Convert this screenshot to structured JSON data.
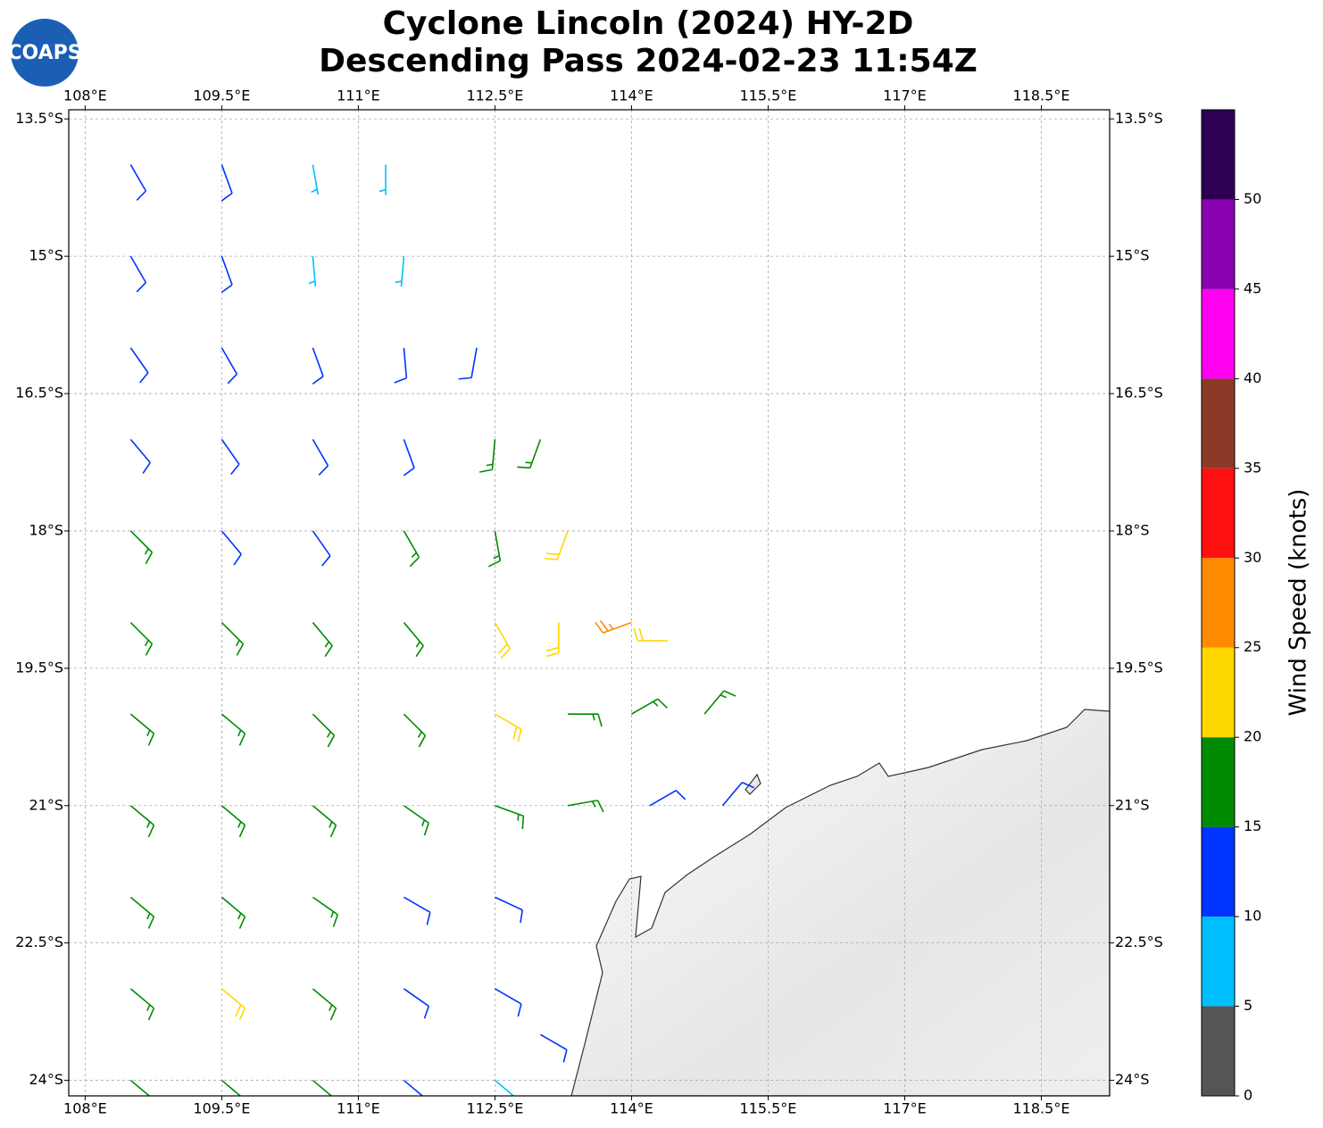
{
  "map": {
    "logo": "COAPS",
    "title": [
      "Cyclone Lincoln (2024) HY-2D",
      "Descending Pass 2024-02-23 11:54Z"
    ],
    "xlim": [
      107.82,
      119.25
    ],
    "ylim": [
      13.4,
      24.17
    ],
    "xticks": [
      {
        "value": 108,
        "label": "108°E"
      },
      {
        "value": 109.5,
        "label": "109.5°E"
      },
      {
        "value": 111,
        "label": "111°E"
      },
      {
        "value": 112.5,
        "label": "112.5°E"
      },
      {
        "value": 114,
        "label": "114°E"
      },
      {
        "value": 115.5,
        "label": "115.5°E"
      },
      {
        "value": 117,
        "label": "117°E"
      },
      {
        "value": 118.5,
        "label": "118.5°E"
      }
    ],
    "yticks": [
      {
        "value": 13.5,
        "label": "13.5°S"
      },
      {
        "value": 15,
        "label": "15°S"
      },
      {
        "value": 16.5,
        "label": "16.5°S"
      },
      {
        "value": 18,
        "label": "18°S"
      },
      {
        "value": 19.5,
        "label": "19.5°S"
      },
      {
        "value": 21,
        "label": "21°S"
      },
      {
        "value": 22.5,
        "label": "22.5°S"
      },
      {
        "value": 24,
        "label": "24°S"
      }
    ],
    "colorbar": {
      "label": "Wind Speed (knots)",
      "bounds": [
        0,
        5,
        10,
        15,
        20,
        25,
        30,
        35,
        40,
        45,
        50,
        55
      ],
      "colors": [
        "#555555",
        "#00bfff",
        "#0033ff",
        "#008c00",
        "#ffd700",
        "#ff8c00",
        "#ff1010",
        "#8b3a28",
        "#ff00f0",
        "#8b00b0",
        "#2e0054"
      ],
      "ticks": [
        0,
        5,
        10,
        15,
        20,
        25,
        30,
        35,
        40,
        45,
        50
      ]
    },
    "barbs": [
      [
        108.5,
        14,
        12,
        150
      ],
      [
        109.5,
        14,
        11,
        160
      ],
      [
        110.5,
        14,
        8,
        170
      ],
      [
        111.3,
        14,
        7,
        180
      ],
      [
        108.5,
        15,
        12,
        150
      ],
      [
        109.5,
        15,
        11,
        160
      ],
      [
        110.5,
        15,
        8,
        175
      ],
      [
        111.5,
        15,
        8,
        185
      ],
      [
        108.5,
        16,
        13,
        145
      ],
      [
        109.5,
        16,
        13,
        150
      ],
      [
        110.5,
        16,
        12,
        160
      ],
      [
        111.5,
        16,
        12,
        175
      ],
      [
        112.3,
        16,
        13,
        190
      ],
      [
        108.5,
        17,
        14,
        140
      ],
      [
        109.5,
        17,
        13,
        145
      ],
      [
        110.5,
        17,
        13,
        150
      ],
      [
        111.5,
        17,
        14,
        160
      ],
      [
        112.5,
        17,
        17,
        185
      ],
      [
        113,
        17,
        18,
        200
      ],
      [
        108.5,
        18,
        16,
        135
      ],
      [
        109.5,
        18,
        14,
        140
      ],
      [
        110.5,
        18,
        14,
        145
      ],
      [
        111.5,
        18,
        16,
        150
      ],
      [
        112.5,
        18,
        19,
        170
      ],
      [
        113.3,
        18,
        22,
        200
      ],
      [
        108.5,
        19,
        16,
        135
      ],
      [
        109.5,
        19,
        17,
        135
      ],
      [
        110.5,
        19,
        15,
        140
      ],
      [
        111.5,
        19,
        17,
        140
      ],
      [
        112.5,
        19,
        23,
        150
      ],
      [
        113.2,
        19,
        22,
        180
      ],
      [
        114,
        19,
        27,
        250
      ],
      [
        114.4,
        19.2,
        22,
        270
      ],
      [
        108.5,
        20,
        17,
        130
      ],
      [
        109.5,
        20,
        17,
        130
      ],
      [
        110.5,
        20,
        16,
        135
      ],
      [
        111.5,
        20,
        15,
        135
      ],
      [
        112.5,
        20,
        22,
        120
      ],
      [
        113.3,
        20,
        18,
        90
      ],
      [
        114,
        20,
        18,
        60
      ],
      [
        114.8,
        20,
        17,
        40
      ],
      [
        108.5,
        21,
        18,
        130
      ],
      [
        109.5,
        21,
        17,
        130
      ],
      [
        110.5,
        21,
        15,
        130
      ],
      [
        111.5,
        21,
        15,
        125
      ],
      [
        112.5,
        21,
        15,
        110
      ],
      [
        113.3,
        21,
        17,
        80
      ],
      [
        114.2,
        21,
        14,
        60
      ],
      [
        115,
        21,
        13,
        40
      ],
      [
        108.5,
        22,
        18,
        130
      ],
      [
        109.5,
        22,
        18,
        130
      ],
      [
        110.5,
        22,
        16,
        125
      ],
      [
        111.5,
        22,
        13,
        120
      ],
      [
        112.5,
        22,
        14,
        115
      ],
      [
        108.5,
        23,
        18,
        130
      ],
      [
        109.5,
        23,
        22,
        130
      ],
      [
        110.5,
        23,
        15,
        130
      ],
      [
        111.5,
        23,
        13,
        125
      ],
      [
        112.5,
        23,
        12,
        120
      ],
      [
        113,
        23.5,
        13,
        120
      ],
      [
        108.5,
        24,
        18,
        130
      ],
      [
        109.5,
        24,
        17,
        130
      ],
      [
        110.5,
        24,
        15,
        130
      ],
      [
        111.5,
        24,
        14,
        130
      ],
      [
        112.5,
        24,
        9,
        130
      ]
    ]
  }
}
